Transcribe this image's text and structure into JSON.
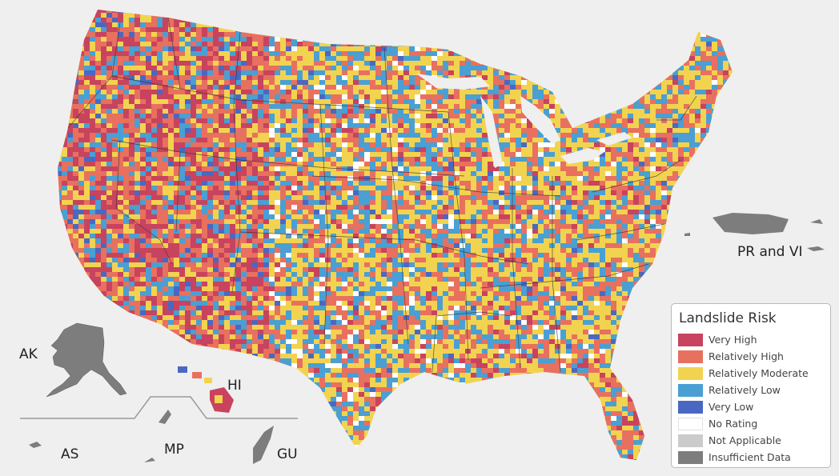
{
  "map": {
    "legend": {
      "title": "Landslide Risk",
      "items": [
        {
          "label": "Very High",
          "color": "#c8435e"
        },
        {
          "label": "Relatively High",
          "color": "#e8705f"
        },
        {
          "label": "Relatively Moderate",
          "color": "#f2d34f"
        },
        {
          "label": "Relatively Low",
          "color": "#4a9fd3"
        },
        {
          "label": "Very Low",
          "color": "#4a68c2"
        },
        {
          "label": "No Rating",
          "color": "#ffffff"
        },
        {
          "label": "Not Applicable",
          "color": "#cbcbcb"
        },
        {
          "label": "Insufficient Data",
          "color": "#7d7d7d"
        }
      ]
    },
    "territories": {
      "ak": "AK",
      "hi": "HI",
      "as": "AS",
      "mp": "MP",
      "gu": "GU",
      "pr_vi": "PR and VI"
    }
  }
}
